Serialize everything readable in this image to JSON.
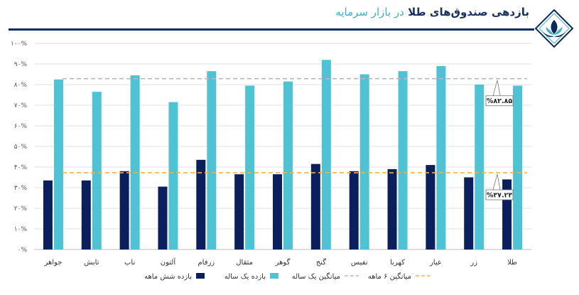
{
  "header": {
    "title_main": "بازدهی صندوق‌های طلا",
    "title_accent": "در بازار سرمایه"
  },
  "colors": {
    "six_month": "#0b1f5c",
    "one_year": "#4fc3d4",
    "avg_year_line": "#b8b8b8",
    "avg_six_line": "#f2b33d",
    "brand_dark": "#0b2a5a",
    "brand_teal": "#3fb1c5"
  },
  "logo": {
    "icon": "lotus-diamond-logo-icon"
  },
  "chart_data": {
    "type": "bar",
    "title": "بازدهی صندوق‌های طلا در بازار سرمایه",
    "xlabel": "",
    "ylabel": "",
    "ylim": [
      0,
      100
    ],
    "y_ticks": [
      "۰%",
      "۱۰%",
      "۲۰%",
      "۳۰%",
      "۴۰%",
      "۵۰%",
      "۶۰%",
      "۷۰%",
      "۸۰%",
      "۹۰%",
      "۱۰۰%"
    ],
    "grid": true,
    "categories": [
      "طلا",
      "زر",
      "عیار",
      "کهربا",
      "نفیس",
      "گنج",
      "گوهر",
      "مثقال",
      "زرفام",
      "آلتون",
      "ناب",
      "تابش",
      "جواهر"
    ],
    "series": [
      {
        "name": "بازده شش ماهه",
        "color_key": "six_month",
        "values": [
          34,
          35,
          41,
          39,
          38,
          41.5,
          36.5,
          36.5,
          43.5,
          30.5,
          38,
          33.5,
          33.5
        ]
      },
      {
        "name": "بازده  یک ساله",
        "color_key": "one_year",
        "values": [
          79.5,
          80,
          89,
          86.5,
          85,
          92,
          81.5,
          79.5,
          86.5,
          71.5,
          84.5,
          76.5,
          82.5
        ]
      }
    ],
    "reference_lines": [
      {
        "name": "میانگین یک ساله",
        "value": 82.85,
        "label": "%۸۲.۸۵",
        "color_key": "avg_year_line"
      },
      {
        "name": "میانگین ۶ ماهه",
        "value": 37.23,
        "label": "%۳۷.۲۳",
        "color_key": "avg_six_line"
      }
    ],
    "legend_position": "bottom-center"
  }
}
